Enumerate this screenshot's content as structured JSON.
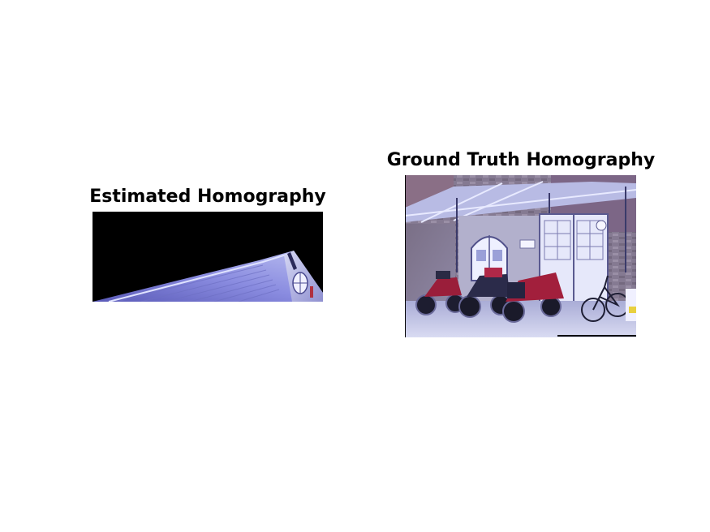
{
  "figure": {
    "left_panel": {
      "title": "Estimated Homography"
    },
    "right_panel": {
      "title": "Ground Truth Homography"
    }
  }
}
